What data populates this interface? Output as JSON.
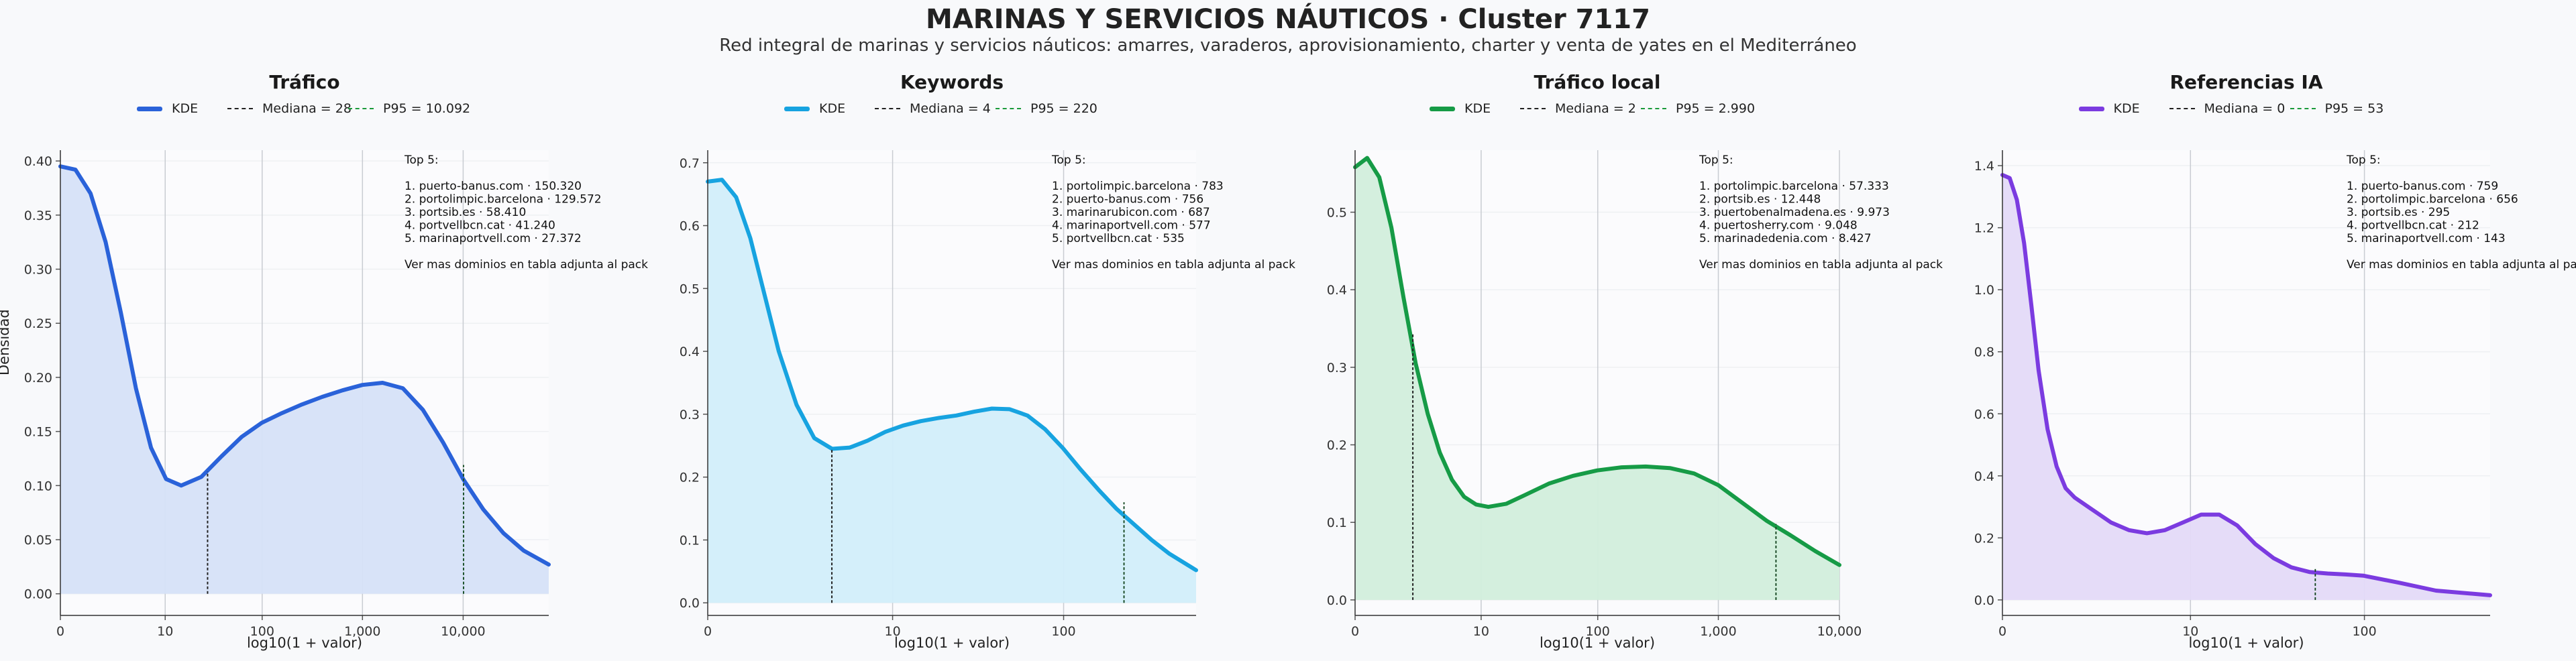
{
  "header": {
    "title": "MARINAS Y SERVICIOS NÁUTICOS · Cluster 7117",
    "subtitle": "Red integral de marinas y servicios náuticos: amarres, varaderos, aprovisionamiento, charter y venta de yates en el Mediterráneo"
  },
  "common": {
    "ylabel": "Densidad",
    "xlabel": "log10(1 + valor)",
    "legend_kde": "KDE",
    "top_heading": "Top 5:",
    "footer_note": "Ver mas dominios en tabla adjunta al pack"
  },
  "colors": {
    "trafico": "#2a62d9",
    "keywords": "#17a3e0",
    "trafico_local": "#169b46",
    "referencias_ia": "#7b3be0",
    "median_line": "#222222",
    "p95_line": "#1a9a3a"
  },
  "chart_data": [
    {
      "type": "area",
      "title": "Tráfico",
      "xlabel": "log10(1 + valor)",
      "ylabel": "Densidad",
      "x_scale": "log10(1+x)",
      "xlim": [
        0,
        4.85
      ],
      "ylim": [
        -0.02,
        0.41
      ],
      "xticks": [
        0,
        1.041,
        2.004,
        3.0,
        4.0
      ],
      "xtick_labels": [
        "0",
        "10",
        "100",
        "1,000",
        "10,000"
      ],
      "yticks": [
        0,
        0.05,
        0.1,
        0.15,
        0.2,
        0.25,
        0.3,
        0.35,
        0.4
      ],
      "ytick_labels": [
        "0.00",
        "0.05",
        "0.10",
        "0.15",
        "0.20",
        "0.25",
        "0.30",
        "0.35",
        "0.40"
      ],
      "x": [
        0,
        0.15,
        0.3,
        0.45,
        0.6,
        0.75,
        0.9,
        1.05,
        1.2,
        1.4,
        1.6,
        1.8,
        2.0,
        2.2,
        2.4,
        2.6,
        2.8,
        3.0,
        3.2,
        3.4,
        3.6,
        3.8,
        4.0,
        4.2,
        4.4,
        4.6,
        4.85
      ],
      "y": [
        0.395,
        0.392,
        0.37,
        0.325,
        0.26,
        0.19,
        0.135,
        0.106,
        0.1,
        0.108,
        0.127,
        0.145,
        0.158,
        0.167,
        0.175,
        0.182,
        0.188,
        0.193,
        0.195,
        0.19,
        0.17,
        0.14,
        0.106,
        0.078,
        0.056,
        0.04,
        0.027
      ],
      "legend_median": "Mediana = 28",
      "legend_p95": "P95 = 10.092",
      "median_x": 1.462,
      "median_y": 0.113,
      "p95_x": 4.004,
      "p95_y": 0.119,
      "top5": [
        "1. puerto-banus.com · 150.320",
        "2. portolimpic.barcelona · 129.572",
        "3. portsib.es · 58.410",
        "4. portvellbcn.cat · 41.240",
        "5. marinaportvell.com · 27.372"
      ]
    },
    {
      "type": "area",
      "title": "Keywords",
      "xlabel": "log10(1 + valor)",
      "ylabel": "Densidad",
      "x_scale": "log10(1+x)",
      "xlim": [
        0,
        2.75
      ],
      "ylim": [
        -0.02,
        0.72
      ],
      "xticks": [
        0,
        1.041,
        2.004
      ],
      "xtick_labels": [
        "0",
        "10",
        "100"
      ],
      "yticks": [
        0,
        0.1,
        0.2,
        0.3,
        0.4,
        0.5,
        0.6,
        0.7
      ],
      "ytick_labels": [
        "0.0",
        "0.1",
        "0.2",
        "0.3",
        "0.4",
        "0.5",
        "0.6",
        "0.7"
      ],
      "x": [
        0,
        0.08,
        0.16,
        0.24,
        0.32,
        0.4,
        0.5,
        0.6,
        0.7,
        0.8,
        0.9,
        1.0,
        1.1,
        1.2,
        1.3,
        1.4,
        1.5,
        1.6,
        1.7,
        1.8,
        1.9,
        2.0,
        2.1,
        2.2,
        2.3,
        2.4,
        2.5,
        2.6,
        2.75
      ],
      "y": [
        0.67,
        0.673,
        0.645,
        0.58,
        0.49,
        0.4,
        0.315,
        0.262,
        0.245,
        0.247,
        0.258,
        0.272,
        0.282,
        0.289,
        0.294,
        0.298,
        0.304,
        0.309,
        0.308,
        0.298,
        0.276,
        0.246,
        0.212,
        0.18,
        0.15,
        0.125,
        0.1,
        0.078,
        0.052
      ],
      "legend_median": "Mediana = 4",
      "legend_p95": "P95 = 220",
      "median_x": 0.699,
      "median_y": 0.246,
      "p95_x": 2.344,
      "p95_y": 0.16,
      "top5": [
        "1. portolimpic.barcelona · 783",
        "2. puerto-banus.com · 756",
        "3. marinarubicon.com · 687",
        "4. marinaportvell.com · 577",
        "5. portvellbcn.cat · 535"
      ]
    },
    {
      "type": "area",
      "title": "Tráfico local",
      "xlabel": "log10(1 + valor)",
      "ylabel": "Densidad",
      "x_scale": "log10(1+x)",
      "xlim": [
        0,
        4.0
      ],
      "ylim": [
        -0.02,
        0.58
      ],
      "xticks": [
        0,
        1.041,
        2.004,
        3.0,
        4.0
      ],
      "xtick_labels": [
        "0",
        "10",
        "100",
        "1,000",
        "10,000"
      ],
      "yticks": [
        0,
        0.1,
        0.2,
        0.3,
        0.4,
        0.5
      ],
      "ytick_labels": [
        "0.0",
        "0.1",
        "0.2",
        "0.3",
        "0.4",
        "0.5"
      ],
      "x": [
        0,
        0.1,
        0.2,
        0.3,
        0.4,
        0.5,
        0.6,
        0.7,
        0.8,
        0.9,
        1.0,
        1.1,
        1.25,
        1.4,
        1.6,
        1.8,
        2.0,
        2.2,
        2.4,
        2.6,
        2.8,
        3.0,
        3.2,
        3.4,
        3.6,
        3.8,
        4.0
      ],
      "y": [
        0.558,
        0.57,
        0.545,
        0.48,
        0.39,
        0.305,
        0.24,
        0.19,
        0.155,
        0.133,
        0.123,
        0.12,
        0.124,
        0.135,
        0.15,
        0.16,
        0.167,
        0.171,
        0.172,
        0.17,
        0.163,
        0.148,
        0.125,
        0.102,
        0.083,
        0.063,
        0.045
      ],
      "legend_median": "Mediana = 2",
      "legend_p95": "P95 = 2.990",
      "median_x": 0.477,
      "median_y": 0.345,
      "p95_x": 3.476,
      "p95_y": 0.098,
      "top5": [
        "1. portolimpic.barcelona · 57.333",
        "2. portsib.es · 12.448",
        "3. puertobenalmadena.es · 9.973",
        "4. puertosherry.com · 9.048",
        "5. marinadedenia.com · 8.427"
      ]
    },
    {
      "type": "area",
      "title": "Referencias IA",
      "xlabel": "log10(1 + valor)",
      "ylabel": "Densidad",
      "x_scale": "log10(1+x)",
      "xlim": [
        0,
        2.7
      ],
      "ylim": [
        -0.05,
        1.45
      ],
      "xticks": [
        0,
        1.041,
        2.004
      ],
      "xtick_labels": [
        "0",
        "10",
        "100"
      ],
      "yticks": [
        0,
        0.2,
        0.4,
        0.6,
        0.8,
        1.0,
        1.2,
        1.4
      ],
      "ytick_labels": [
        "0.0",
        "0.2",
        "0.4",
        "0.6",
        "0.8",
        "1.0",
        "1.2",
        "1.4"
      ],
      "x": [
        0,
        0.04,
        0.08,
        0.12,
        0.16,
        0.2,
        0.25,
        0.3,
        0.35,
        0.4,
        0.5,
        0.6,
        0.7,
        0.8,
        0.9,
        1.0,
        1.1,
        1.2,
        1.3,
        1.4,
        1.5,
        1.6,
        1.7,
        1.8,
        1.9,
        2.0,
        2.2,
        2.4,
        2.7
      ],
      "y": [
        1.37,
        1.36,
        1.29,
        1.15,
        0.95,
        0.74,
        0.55,
        0.43,
        0.36,
        0.33,
        0.29,
        0.25,
        0.225,
        0.215,
        0.225,
        0.25,
        0.275,
        0.275,
        0.24,
        0.18,
        0.135,
        0.105,
        0.09,
        0.085,
        0.082,
        0.078,
        0.055,
        0.03,
        0.015
      ],
      "legend_median": "Mediana = 0",
      "legend_p95": "P95 = 53",
      "median_x": 0,
      "median_y": 0,
      "p95_x": 1.732,
      "p95_y": 0.105,
      "top5": [
        "1. puerto-banus.com · 759",
        "2. portolimpic.barcelona · 656",
        "3. portsib.es · 295",
        "4. portvellbcn.cat · 212",
        "5. marinaportvell.com · 143"
      ]
    }
  ]
}
